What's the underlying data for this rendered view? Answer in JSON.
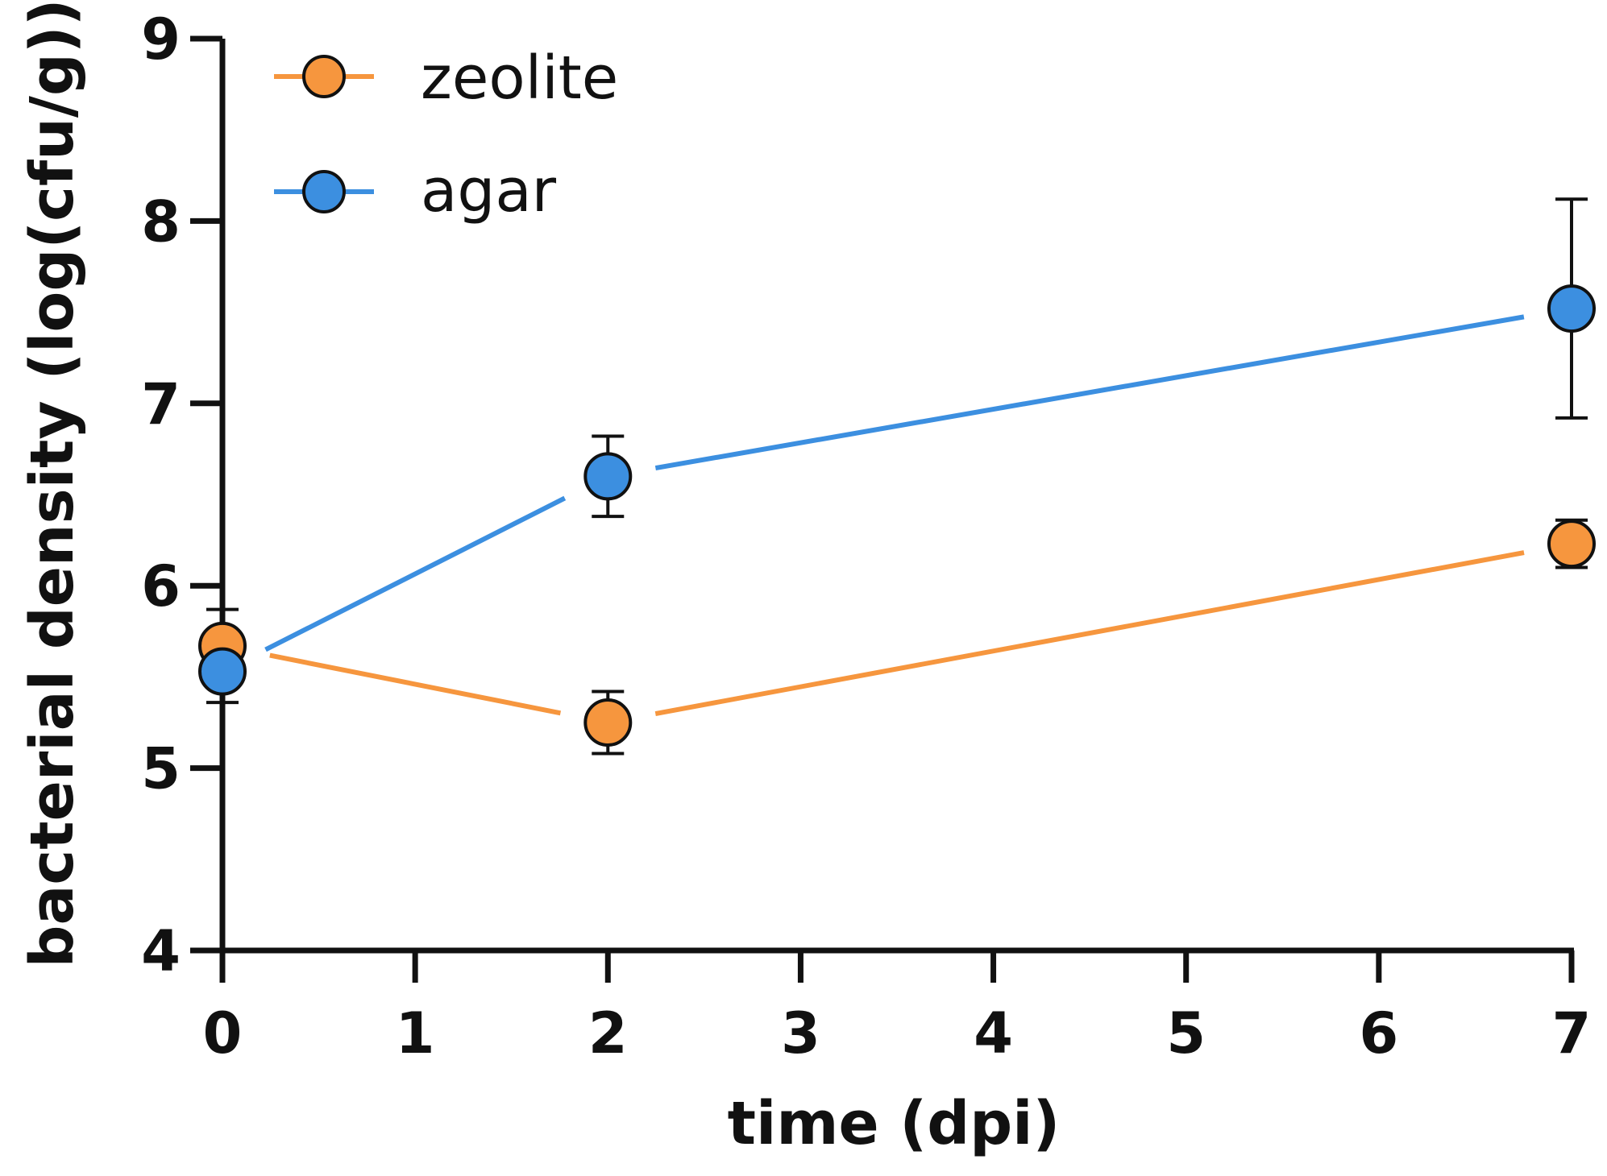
{
  "chart_data": {
    "type": "line",
    "title": "",
    "xlabel": "time (dpi)",
    "ylabel": "bacterial density (log(cfu/g))",
    "xlim": [
      0,
      7
    ],
    "ylim": [
      4,
      9
    ],
    "x_ticks": [
      "0",
      "1",
      "2",
      "3",
      "4",
      "5",
      "6",
      "7"
    ],
    "y_ticks": [
      "4",
      "5",
      "6",
      "7",
      "8",
      "9"
    ],
    "grid": false,
    "legend_position": "top-left",
    "series": [
      {
        "name": "zeolite",
        "color": "#F6963E",
        "x": [
          0,
          2,
          7
        ],
        "values": [
          5.67,
          5.25,
          6.23
        ],
        "error": [
          0.2,
          0.17,
          0.13
        ]
      },
      {
        "name": "agar",
        "color": "#3C8FE0",
        "x": [
          0,
          2,
          7
        ],
        "values": [
          5.53,
          6.6,
          7.52
        ],
        "error": [
          0.17,
          0.22,
          0.6
        ]
      }
    ]
  }
}
